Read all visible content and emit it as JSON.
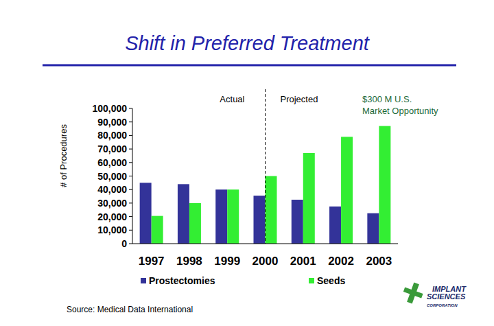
{
  "chart_data": {
    "type": "bar",
    "title": "Shift in Preferred Treatment",
    "y_label": "# of Procedures",
    "categories": [
      "1997",
      "1998",
      "1999",
      "2000",
      "2001",
      "2002",
      "2003"
    ],
    "series": [
      {
        "name": "Prostectomies",
        "color": "#333399",
        "values": [
          45000,
          44000,
          40000,
          35500,
          32500,
          27500,
          22500
        ]
      },
      {
        "name": "Seeds",
        "color": "#33ee33",
        "values": [
          20500,
          30000,
          40000,
          50000,
          67000,
          79000,
          87000
        ]
      }
    ],
    "ylim": [
      0,
      100000
    ],
    "yticks": [
      0,
      {
        "value": 10000,
        "label": "10,000"
      },
      {
        "value": 20000,
        "label": "20,000"
      },
      {
        "value": 30000,
        "label": "30,000"
      },
      {
        "value": 40000,
        "label": "40,000"
      },
      {
        "value": 50000,
        "label": "50,000"
      },
      {
        "value": 60000,
        "label": "60,000"
      },
      {
        "value": 70000,
        "label": "70,000"
      },
      {
        "value": 80000,
        "label": "80,000"
      },
      {
        "value": 90000,
        "label": "90,000"
      },
      {
        "value": 100000,
        "label": "100,000"
      }
    ],
    "grid": false,
    "legend": "bottom",
    "annotations": [
      "Actual",
      "Projected",
      "$300 M U.S. Market Opportunity"
    ],
    "source": "Source: Medical Data International",
    "logo_text": [
      "IMPLANT",
      "SCIENCES",
      "CORPORATION"
    ]
  }
}
